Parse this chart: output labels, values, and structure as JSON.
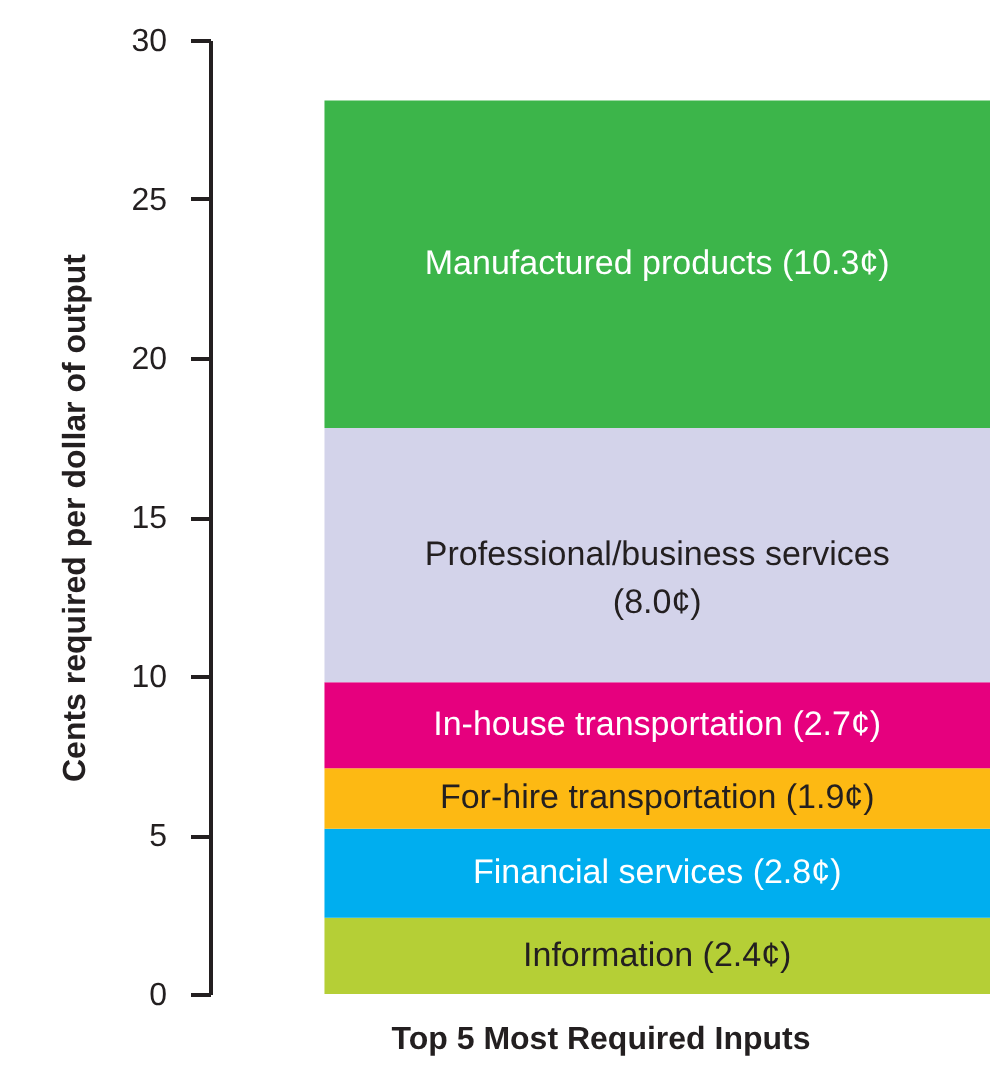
{
  "chart_data": {
    "type": "bar",
    "stacked": true,
    "xlabel": "Top 5 Most Required Inputs",
    "ylabel": "Cents required per dollar of output",
    "categories": [
      null
    ],
    "series": [
      {
        "name": "Information",
        "color": "#b5cf36",
        "values": [
          2.4
        ],
        "value_labels": [
          "(2.4¢)"
        ]
      },
      {
        "name": "Financial services",
        "color": "#00aeef",
        "values": [
          2.8
        ],
        "value_labels": [
          "(2.8¢)"
        ]
      },
      {
        "name": "For-hire transportation",
        "color": "#fdb913",
        "values": [
          1.9
        ],
        "value_labels": [
          "(1.9¢)"
        ]
      },
      {
        "name": "In-house transportation",
        "color": "#e6007e",
        "values": [
          2.7
        ],
        "value_labels": [
          "(2.7¢)"
        ]
      },
      {
        "name": "Professional/business services",
        "color": "#d3d3ea",
        "values": [
          8.0
        ],
        "value_labels": [
          "(8.0¢)"
        ]
      },
      {
        "name": "Manufactured products",
        "color": "#3cb54a",
        "values": [
          10.3
        ],
        "value_labels": [
          "(10.3¢)"
        ]
      }
    ],
    "ylim": [
      0,
      30
    ],
    "yticks": [
      0,
      5,
      10,
      15,
      20,
      25,
      30
    ],
    "grid": false,
    "legend": false,
    "tick_labels": "y"
  }
}
